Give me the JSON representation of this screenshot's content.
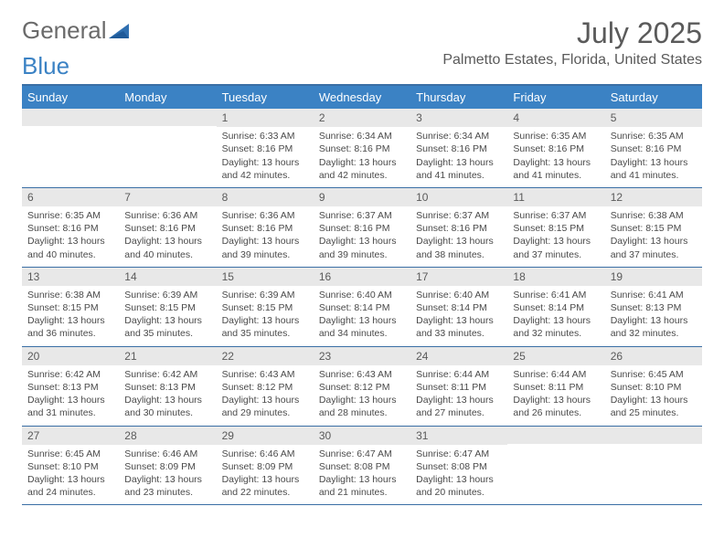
{
  "brand": {
    "word1": "General",
    "word2": "Blue"
  },
  "title": "July 2025",
  "location": "Palmetto Estates, Florida, United States",
  "colors": {
    "header_bg": "#3b82c4",
    "border": "#3a6fa5",
    "daynum_bg": "#e8e8e8",
    "text": "#4a4a4a"
  },
  "weekdays": [
    "Sunday",
    "Monday",
    "Tuesday",
    "Wednesday",
    "Thursday",
    "Friday",
    "Saturday"
  ],
  "weeks": [
    [
      {
        "n": "",
        "sr": "",
        "ss": "",
        "dl": ""
      },
      {
        "n": "",
        "sr": "",
        "ss": "",
        "dl": ""
      },
      {
        "n": "1",
        "sr": "6:33 AM",
        "ss": "8:16 PM",
        "dl": "13 hours and 42 minutes."
      },
      {
        "n": "2",
        "sr": "6:34 AM",
        "ss": "8:16 PM",
        "dl": "13 hours and 42 minutes."
      },
      {
        "n": "3",
        "sr": "6:34 AM",
        "ss": "8:16 PM",
        "dl": "13 hours and 41 minutes."
      },
      {
        "n": "4",
        "sr": "6:35 AM",
        "ss": "8:16 PM",
        "dl": "13 hours and 41 minutes."
      },
      {
        "n": "5",
        "sr": "6:35 AM",
        "ss": "8:16 PM",
        "dl": "13 hours and 41 minutes."
      }
    ],
    [
      {
        "n": "6",
        "sr": "6:35 AM",
        "ss": "8:16 PM",
        "dl": "13 hours and 40 minutes."
      },
      {
        "n": "7",
        "sr": "6:36 AM",
        "ss": "8:16 PM",
        "dl": "13 hours and 40 minutes."
      },
      {
        "n": "8",
        "sr": "6:36 AM",
        "ss": "8:16 PM",
        "dl": "13 hours and 39 minutes."
      },
      {
        "n": "9",
        "sr": "6:37 AM",
        "ss": "8:16 PM",
        "dl": "13 hours and 39 minutes."
      },
      {
        "n": "10",
        "sr": "6:37 AM",
        "ss": "8:16 PM",
        "dl": "13 hours and 38 minutes."
      },
      {
        "n": "11",
        "sr": "6:37 AM",
        "ss": "8:15 PM",
        "dl": "13 hours and 37 minutes."
      },
      {
        "n": "12",
        "sr": "6:38 AM",
        "ss": "8:15 PM",
        "dl": "13 hours and 37 minutes."
      }
    ],
    [
      {
        "n": "13",
        "sr": "6:38 AM",
        "ss": "8:15 PM",
        "dl": "13 hours and 36 minutes."
      },
      {
        "n": "14",
        "sr": "6:39 AM",
        "ss": "8:15 PM",
        "dl": "13 hours and 35 minutes."
      },
      {
        "n": "15",
        "sr": "6:39 AM",
        "ss": "8:15 PM",
        "dl": "13 hours and 35 minutes."
      },
      {
        "n": "16",
        "sr": "6:40 AM",
        "ss": "8:14 PM",
        "dl": "13 hours and 34 minutes."
      },
      {
        "n": "17",
        "sr": "6:40 AM",
        "ss": "8:14 PM",
        "dl": "13 hours and 33 minutes."
      },
      {
        "n": "18",
        "sr": "6:41 AM",
        "ss": "8:14 PM",
        "dl": "13 hours and 32 minutes."
      },
      {
        "n": "19",
        "sr": "6:41 AM",
        "ss": "8:13 PM",
        "dl": "13 hours and 32 minutes."
      }
    ],
    [
      {
        "n": "20",
        "sr": "6:42 AM",
        "ss": "8:13 PM",
        "dl": "13 hours and 31 minutes."
      },
      {
        "n": "21",
        "sr": "6:42 AM",
        "ss": "8:13 PM",
        "dl": "13 hours and 30 minutes."
      },
      {
        "n": "22",
        "sr": "6:43 AM",
        "ss": "8:12 PM",
        "dl": "13 hours and 29 minutes."
      },
      {
        "n": "23",
        "sr": "6:43 AM",
        "ss": "8:12 PM",
        "dl": "13 hours and 28 minutes."
      },
      {
        "n": "24",
        "sr": "6:44 AM",
        "ss": "8:11 PM",
        "dl": "13 hours and 27 minutes."
      },
      {
        "n": "25",
        "sr": "6:44 AM",
        "ss": "8:11 PM",
        "dl": "13 hours and 26 minutes."
      },
      {
        "n": "26",
        "sr": "6:45 AM",
        "ss": "8:10 PM",
        "dl": "13 hours and 25 minutes."
      }
    ],
    [
      {
        "n": "27",
        "sr": "6:45 AM",
        "ss": "8:10 PM",
        "dl": "13 hours and 24 minutes."
      },
      {
        "n": "28",
        "sr": "6:46 AM",
        "ss": "8:09 PM",
        "dl": "13 hours and 23 minutes."
      },
      {
        "n": "29",
        "sr": "6:46 AM",
        "ss": "8:09 PM",
        "dl": "13 hours and 22 minutes."
      },
      {
        "n": "30",
        "sr": "6:47 AM",
        "ss": "8:08 PM",
        "dl": "13 hours and 21 minutes."
      },
      {
        "n": "31",
        "sr": "6:47 AM",
        "ss": "8:08 PM",
        "dl": "13 hours and 20 minutes."
      },
      {
        "n": "",
        "sr": "",
        "ss": "",
        "dl": ""
      },
      {
        "n": "",
        "sr": "",
        "ss": "",
        "dl": ""
      }
    ]
  ],
  "labels": {
    "sunrise": "Sunrise:",
    "sunset": "Sunset:",
    "daylight": "Daylight:"
  }
}
